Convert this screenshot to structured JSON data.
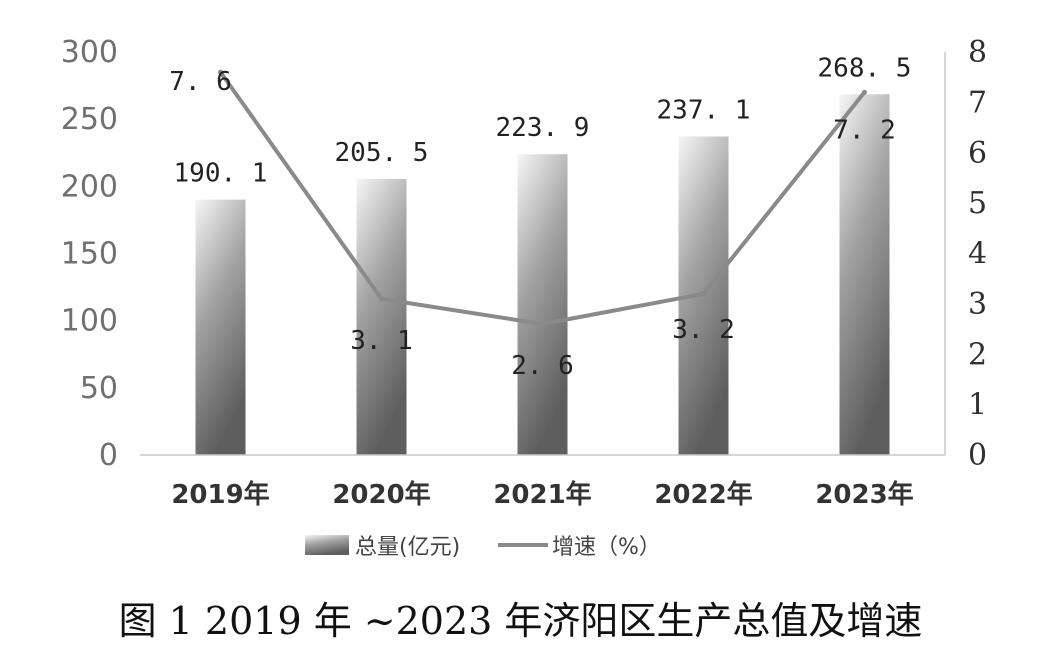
{
  "chart_data": {
    "type": "bar+line",
    "categories": [
      "2019年",
      "2020年",
      "2021年",
      "2022年",
      "2023年"
    ],
    "series": [
      {
        "name": "总量(亿元)",
        "type": "bar",
        "axis": "left",
        "values": [
          190.1,
          205.5,
          223.9,
          237.1,
          268.5
        ],
        "labels": [
          "190. 1",
          "205. 5",
          "223. 9",
          "237. 1",
          "268. 5"
        ]
      },
      {
        "name": "增速（%）",
        "type": "line",
        "axis": "right",
        "values": [
          7.6,
          3.1,
          2.6,
          3.2,
          7.2
        ],
        "labels": [
          "7. 6",
          "3. 1",
          "2. 6",
          "3. 2",
          "7. 2"
        ]
      }
    ],
    "y_left": {
      "ylim": [
        0,
        300
      ],
      "ticks": [
        "0",
        "50",
        "100",
        "150",
        "200",
        "250",
        "300"
      ]
    },
    "y_right": {
      "ylim": [
        0,
        8
      ],
      "ticks": [
        "0",
        "1",
        "2",
        "3",
        "4",
        "5",
        "6",
        "7",
        "8"
      ]
    },
    "legend": "bottom",
    "grid": false,
    "caption": "图 1  2019 年 ~2023 年济阳区生产总值及增速"
  },
  "colors": {
    "bar_light": "#f4f4f4",
    "bar_dark": "#6a6a6a",
    "line": "#8a8a8a"
  }
}
